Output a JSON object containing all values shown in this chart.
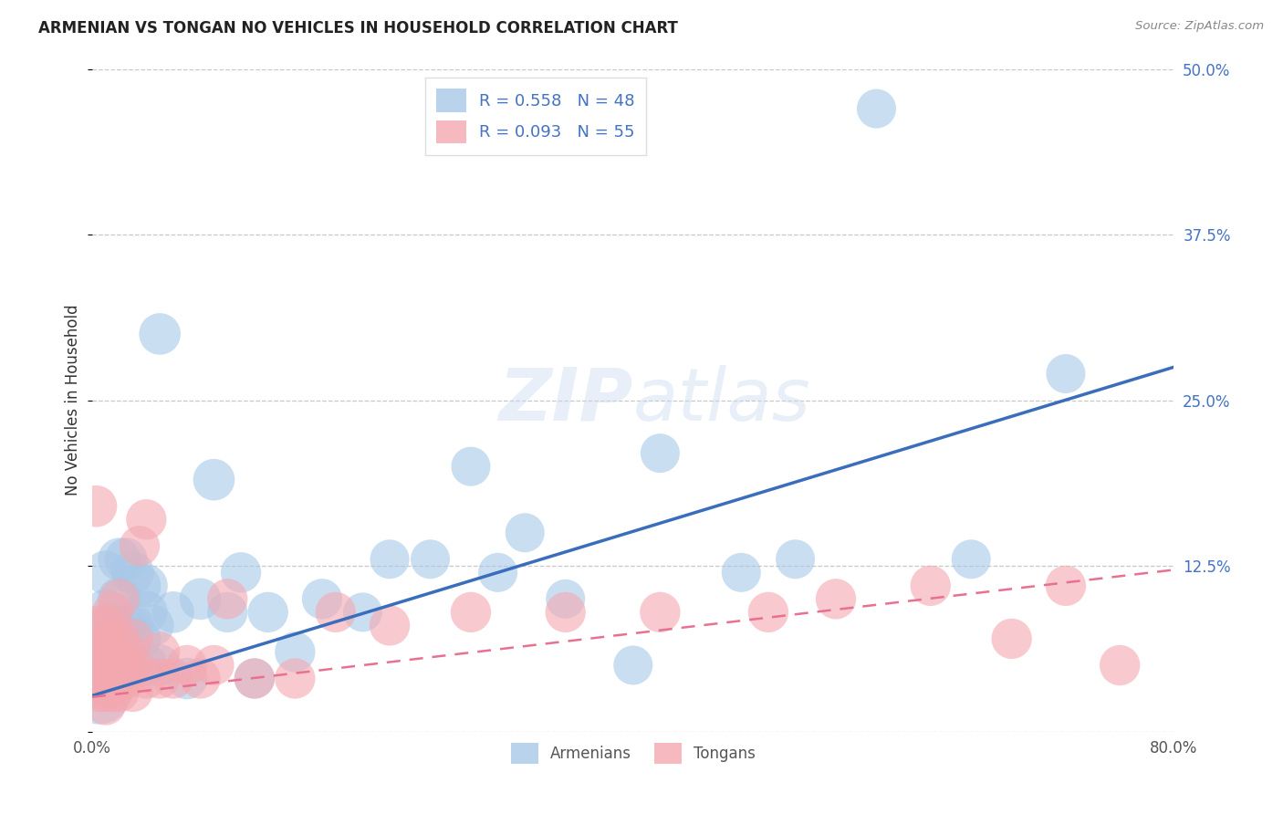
{
  "title": "ARMENIAN VS TONGAN NO VEHICLES IN HOUSEHOLD CORRELATION CHART",
  "source": "Source: ZipAtlas.com",
  "ylabel": "No Vehicles in Household",
  "xlim": [
    0.0,
    0.8
  ],
  "ylim": [
    0.0,
    0.5
  ],
  "ytick_positions": [
    0.0,
    0.125,
    0.25,
    0.375,
    0.5
  ],
  "ytick_labels_right": [
    "",
    "12.5%",
    "25.0%",
    "37.5%",
    "50.0%"
  ],
  "xtick_positions": [
    0.0,
    0.2,
    0.4,
    0.6,
    0.8
  ],
  "xtick_labels": [
    "0.0%",
    "",
    "",
    "",
    "80.0%"
  ],
  "grid_color": "#c8c8c8",
  "background_color": "#ffffff",
  "watermark_zip": "ZIP",
  "watermark_atlas": "atlas",
  "armenian_color": "#a8c8e8",
  "tongan_color": "#f4a8b0",
  "armenian_line_color": "#3a6ebc",
  "tongan_line_color": "#e87090",
  "legend_armenian_R": "0.558",
  "legend_armenian_N": "48",
  "legend_tongan_R": "0.093",
  "legend_tongan_N": "55",
  "arm_line_x0": 0.0,
  "arm_line_y0": 0.027,
  "arm_line_x1": 0.8,
  "arm_line_y1": 0.275,
  "ton_line_x0": 0.0,
  "ton_line_y0": 0.026,
  "ton_line_x1": 0.8,
  "ton_line_y1": 0.122,
  "armenian_x": [
    0.005,
    0.008,
    0.01,
    0.01,
    0.01,
    0.015,
    0.015,
    0.02,
    0.02,
    0.02,
    0.02,
    0.025,
    0.025,
    0.03,
    0.03,
    0.03,
    0.035,
    0.035,
    0.04,
    0.04,
    0.04,
    0.045,
    0.05,
    0.05,
    0.06,
    0.07,
    0.08,
    0.09,
    0.1,
    0.11,
    0.12,
    0.13,
    0.15,
    0.17,
    0.2,
    0.22,
    0.25,
    0.28,
    0.3,
    0.32,
    0.35,
    0.4,
    0.42,
    0.48,
    0.52,
    0.58,
    0.65,
    0.72
  ],
  "armenian_y": [
    0.03,
    0.04,
    0.06,
    0.09,
    0.12,
    0.04,
    0.08,
    0.05,
    0.07,
    0.1,
    0.13,
    0.08,
    0.13,
    0.05,
    0.08,
    0.12,
    0.07,
    0.11,
    0.05,
    0.09,
    0.11,
    0.08,
    0.3,
    0.05,
    0.09,
    0.04,
    0.1,
    0.19,
    0.09,
    0.12,
    0.04,
    0.09,
    0.06,
    0.1,
    0.09,
    0.13,
    0.13,
    0.2,
    0.12,
    0.15,
    0.1,
    0.05,
    0.21,
    0.12,
    0.13,
    0.47,
    0.13,
    0.27
  ],
  "armenian_size": [
    220,
    160,
    120,
    110,
    100,
    110,
    100,
    110,
    100,
    100,
    95,
    100,
    95,
    100,
    95,
    95,
    95,
    95,
    95,
    95,
    95,
    90,
    90,
    90,
    90,
    90,
    90,
    90,
    85,
    85,
    85,
    85,
    85,
    85,
    80,
    80,
    80,
    80,
    80,
    80,
    80,
    80,
    80,
    80,
    80,
    80,
    80,
    80
  ],
  "tongan_x": [
    0.003,
    0.005,
    0.005,
    0.005,
    0.005,
    0.007,
    0.008,
    0.01,
    0.01,
    0.01,
    0.01,
    0.01,
    0.01,
    0.015,
    0.015,
    0.015,
    0.02,
    0.02,
    0.02,
    0.02,
    0.02,
    0.025,
    0.025,
    0.025,
    0.03,
    0.03,
    0.03,
    0.035,
    0.04,
    0.04,
    0.05,
    0.05,
    0.06,
    0.07,
    0.08,
    0.09,
    0.1,
    0.12,
    0.15,
    0.18,
    0.22,
    0.28,
    0.35,
    0.42,
    0.5,
    0.55,
    0.62,
    0.68,
    0.72,
    0.76,
    0.005,
    0.01,
    0.015,
    0.02,
    0.025
  ],
  "tongan_y": [
    0.17,
    0.03,
    0.04,
    0.05,
    0.06,
    0.04,
    0.05,
    0.02,
    0.03,
    0.04,
    0.05,
    0.06,
    0.07,
    0.03,
    0.05,
    0.07,
    0.03,
    0.04,
    0.05,
    0.06,
    0.07,
    0.04,
    0.05,
    0.06,
    0.03,
    0.05,
    0.07,
    0.14,
    0.04,
    0.16,
    0.04,
    0.06,
    0.04,
    0.05,
    0.04,
    0.05,
    0.1,
    0.04,
    0.04,
    0.09,
    0.08,
    0.09,
    0.09,
    0.09,
    0.09,
    0.1,
    0.11,
    0.07,
    0.11,
    0.05,
    0.08,
    0.08,
    0.09,
    0.1,
    0.04
  ],
  "tongan_size": [
    90,
    85,
    85,
    85,
    85,
    85,
    85,
    85,
    85,
    85,
    85,
    85,
    85,
    85,
    85,
    85,
    85,
    85,
    85,
    85,
    85,
    85,
    85,
    85,
    85,
    85,
    85,
    85,
    85,
    85,
    85,
    85,
    85,
    85,
    85,
    85,
    85,
    85,
    85,
    85,
    85,
    85,
    85,
    85,
    85,
    85,
    85,
    85,
    85,
    85,
    85,
    85,
    85,
    85,
    85
  ]
}
